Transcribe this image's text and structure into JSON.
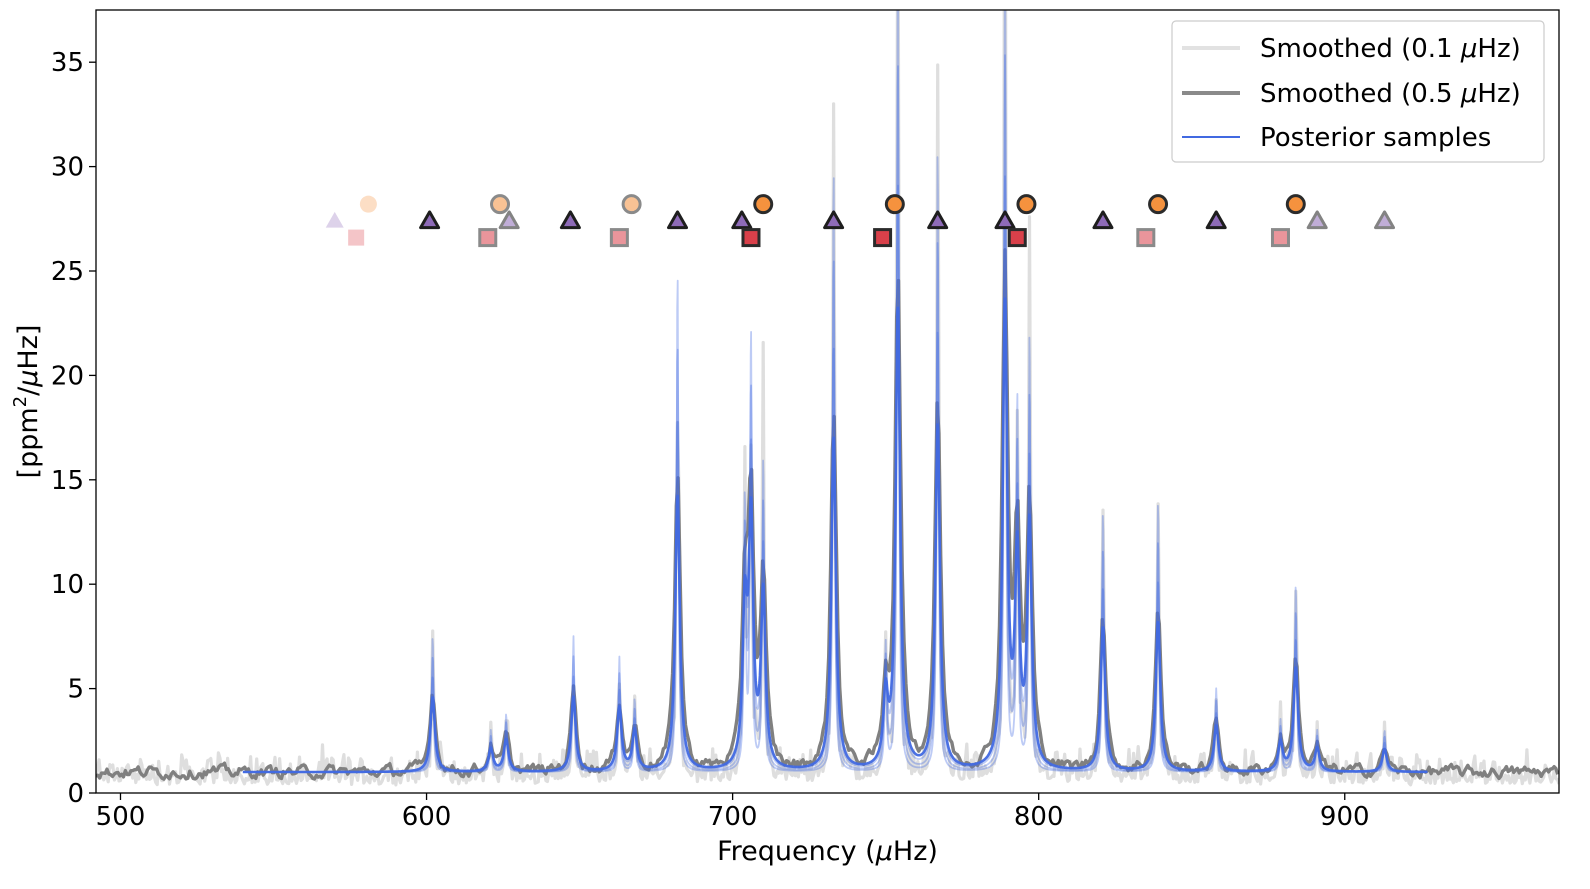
{
  "chart_data": {
    "type": "line",
    "xlabel_prefix": "Frequency (",
    "xlabel_mu": "μ",
    "xlabel_suffix": "Hz)",
    "ylabel_pre": "[ppm",
    "ylabel_sup": "2",
    "ylabel_mid": "/",
    "ylabel_mu": "μ",
    "ylabel_suffix": "Hz]",
    "xlim": [
      492,
      970
    ],
    "ylim": [
      0,
      37.5
    ],
    "xticks": [
      500,
      600,
      700,
      800,
      900
    ],
    "yticks": [
      0,
      5,
      10,
      15,
      20,
      25,
      30,
      35
    ],
    "baseline": 1.0,
    "fit_range": [
      540,
      927
    ],
    "peaks": [
      {
        "f": 602,
        "h": 6.5
      },
      {
        "f": 621,
        "h": 2.0
      },
      {
        "f": 626,
        "h": 2.8
      },
      {
        "f": 648,
        "h": 6.5
      },
      {
        "f": 663,
        "h": 5.5
      },
      {
        "f": 668,
        "h": 3.5
      },
      {
        "f": 682,
        "h": 24.0
      },
      {
        "f": 704,
        "h": 13.0
      },
      {
        "f": 706,
        "h": 21.0
      },
      {
        "f": 710,
        "h": 15.0
      },
      {
        "f": 733,
        "h": 29.0
      },
      {
        "f": 750,
        "h": 6.0
      },
      {
        "f": 754,
        "h": 40.0
      },
      {
        "f": 767,
        "h": 30.0
      },
      {
        "f": 789,
        "h": 40.0
      },
      {
        "f": 793,
        "h": 18.0
      },
      {
        "f": 797,
        "h": 21.0
      },
      {
        "f": 821,
        "h": 12.5
      },
      {
        "f": 839,
        "h": 13.0
      },
      {
        "f": 858,
        "h": 4.0
      },
      {
        "f": 879,
        "h": 2.5
      },
      {
        "f": 884,
        "h": 9.0
      },
      {
        "f": 891,
        "h": 2.0
      },
      {
        "f": 913,
        "h": 2.0
      }
    ],
    "markers": {
      "circles": {
        "color": "#f5923e",
        "y": 28.2,
        "points": [
          [
            581,
            0.3
          ],
          [
            624,
            0.55
          ],
          [
            667,
            0.55
          ],
          [
            710,
            1.0
          ],
          [
            753,
            1.0
          ],
          [
            796,
            1.0
          ],
          [
            839,
            1.0
          ],
          [
            884,
            1.0
          ]
        ]
      },
      "triangles": {
        "color": "#8e6bb8",
        "y": 27.4,
        "points": [
          [
            570,
            0.3
          ],
          [
            601,
            1.0
          ],
          [
            627,
            0.55
          ],
          [
            647,
            1.0
          ],
          [
            682,
            1.0
          ],
          [
            703,
            1.0
          ],
          [
            733,
            1.0
          ],
          [
            767,
            1.0
          ],
          [
            789,
            1.0
          ],
          [
            821,
            1.0
          ],
          [
            858,
            1.0
          ],
          [
            891,
            0.55
          ],
          [
            913,
            0.55
          ]
        ]
      },
      "squares": {
        "color": "#d9404a",
        "y": 26.6,
        "points": [
          [
            577,
            0.3
          ],
          [
            620,
            0.55
          ],
          [
            663,
            0.55
          ],
          [
            706,
            1.0
          ],
          [
            749,
            1.0
          ],
          [
            793,
            1.0
          ],
          [
            835,
            0.55
          ],
          [
            879,
            0.55
          ]
        ]
      }
    },
    "legend_position": "top-right",
    "legend": [
      {
        "prefix": "Smoothed (0.1 ",
        "mu": "μ",
        "suffix": "Hz)",
        "color": "#e2e2e2"
      },
      {
        "prefix": "Smoothed (0.5 ",
        "mu": "μ",
        "suffix": "Hz)",
        "color": "#8a8a8a"
      },
      {
        "prefix": "Posterior samples",
        "mu": "",
        "suffix": "",
        "color": "#4169e1"
      }
    ],
    "colors": {
      "smooth01": "#dedede",
      "smooth05": "#808080",
      "posterior": "#4169e1"
    }
  }
}
